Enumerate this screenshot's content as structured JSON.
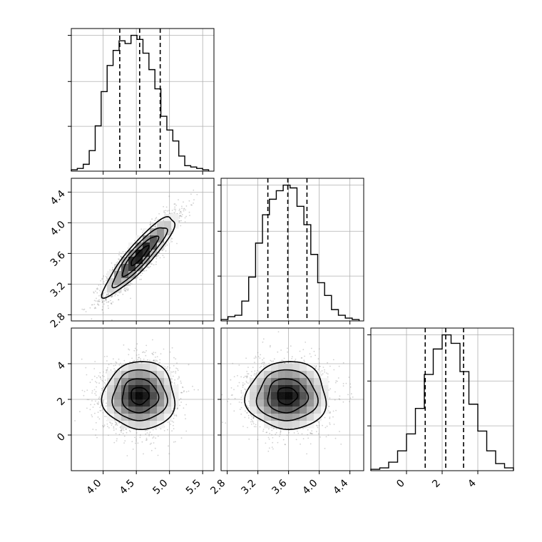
{
  "chart_data": [
    {
      "type": "histogram",
      "panel": "x0",
      "bins": [
        3.52,
        3.61,
        3.7,
        3.79,
        3.88,
        3.97,
        4.06,
        4.15,
        4.24,
        4.33,
        4.42,
        4.51,
        4.6,
        4.69,
        4.78,
        4.87,
        4.96,
        5.05,
        5.14,
        5.23,
        5.32,
        5.41,
        5.5,
        5.59
      ],
      "values": [
        1,
        2,
        5,
        15,
        33,
        58,
        77,
        88,
        95,
        93,
        99,
        96,
        86,
        74,
        60,
        40,
        30,
        22,
        11,
        4,
        3,
        2,
        1
      ],
      "quantiles": [
        4.25,
        4.55,
        4.86
      ],
      "xlim": [
        3.52,
        5.67
      ],
      "xticks": [
        "4.0",
        "4.5",
        "5.0",
        "5.5"
      ],
      "grid": true
    },
    {
      "type": "histogram",
      "panel": "x1",
      "bins": [
        2.72,
        2.81,
        2.9,
        2.99,
        3.08,
        3.17,
        3.26,
        3.35,
        3.44,
        3.53,
        3.62,
        3.71,
        3.8,
        3.89,
        3.98,
        4.07,
        4.16,
        4.25,
        4.34,
        4.43,
        4.52
      ],
      "values": [
        1,
        3,
        4,
        14,
        31,
        55,
        75,
        86,
        92,
        96,
        94,
        81,
        68,
        47,
        27,
        18,
        8,
        4,
        2,
        1
      ],
      "quantiles": [
        3.33,
        3.59,
        3.84
      ],
      "xlim": [
        2.72,
        4.58
      ],
      "xticks": [
        "2.8",
        "3.2",
        "3.6",
        "4.0",
        "4.4"
      ],
      "grid": true
    },
    {
      "type": "histogram",
      "panel": "x2",
      "bins": [
        -2.0,
        -1.5,
        -1.0,
        -0.5,
        0.0,
        0.5,
        1.0,
        1.5,
        2.0,
        2.5,
        3.0,
        3.5,
        4.0,
        4.5,
        5.0,
        5.5,
        6.0
      ],
      "values": [
        1,
        2,
        6,
        14,
        26,
        44,
        68,
        86,
        96,
        90,
        70,
        47,
        28,
        14,
        5,
        2
      ],
      "quantiles": [
        1.05,
        2.2,
        3.2
      ],
      "xlim": [
        -2.0,
        6.0
      ],
      "xticks": [
        "0",
        "2",
        "4"
      ],
      "grid": true
    },
    {
      "type": "scatter-density",
      "panel": "x0 vs x1",
      "center": [
        4.55,
        3.57
      ],
      "sd": [
        0.27,
        0.26
      ],
      "correlation": 0.9,
      "contour_levels": [
        0.5,
        1.0,
        1.5,
        2.0
      ],
      "xlim": [
        3.52,
        5.67
      ],
      "ylim": [
        2.72,
        4.58
      ],
      "yticks": [
        "2.8",
        "3.2",
        "3.6",
        "4.0",
        "4.4"
      ],
      "grid": true
    },
    {
      "type": "scatter-density",
      "panel": "x0 vs x2",
      "center": [
        4.55,
        2.2
      ],
      "sd": [
        0.27,
        0.95
      ],
      "correlation": 0.0,
      "contour_levels": [
        0.5,
        1.0,
        1.5,
        2.0
      ],
      "xlim": [
        3.52,
        5.67
      ],
      "ylim": [
        -2.0,
        6.0
      ],
      "xticks": [
        "4.0",
        "4.5",
        "5.0",
        "5.5"
      ],
      "yticks": [
        "0",
        "2",
        "4"
      ],
      "grid": true
    },
    {
      "type": "scatter-density",
      "panel": "x1 vs x2",
      "center": [
        3.58,
        2.2
      ],
      "sd": [
        0.26,
        0.95
      ],
      "correlation": 0.0,
      "contour_levels": [
        0.5,
        1.0,
        1.5,
        2.0
      ],
      "xlim": [
        2.72,
        4.58
      ],
      "ylim": [
        -2.0,
        6.0
      ],
      "xticks": [
        "2.8",
        "3.2",
        "3.6",
        "4.0",
        "4.4"
      ],
      "grid": true
    }
  ]
}
